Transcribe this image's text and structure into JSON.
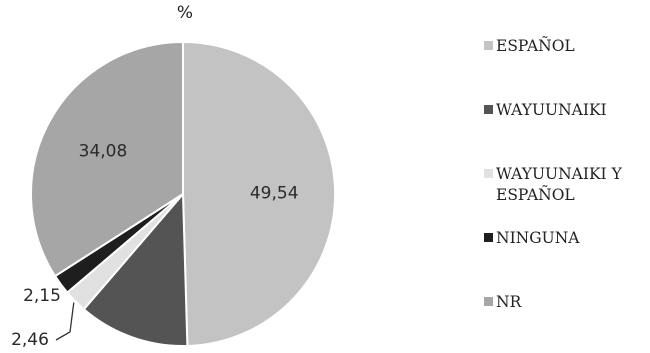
{
  "chart_data": {
    "type": "pie",
    "title": "%",
    "labels": [
      "ESPAÑOL",
      "WAYUUNAIKI",
      "WAYUUNAIKI Y ESPAÑOL",
      "NINGUNA",
      "NR"
    ],
    "legend_labels": [
      "ESPAÑOL",
      "WAYUUNAIKI",
      "WAYUUNAIKI Y\nESPAÑOL",
      "NINGUNA",
      "NR"
    ],
    "values": [
      49.54,
      11.77,
      2.46,
      2.15,
      34.08
    ],
    "data_labels": [
      "49,54",
      "",
      "2,46",
      "2,15",
      "34,08"
    ],
    "colors": [
      "#c3c3c3",
      "#545454",
      "#e1e1e1",
      "#1e1e1e",
      "#a6a6a6"
    ],
    "legend_position": "right"
  }
}
